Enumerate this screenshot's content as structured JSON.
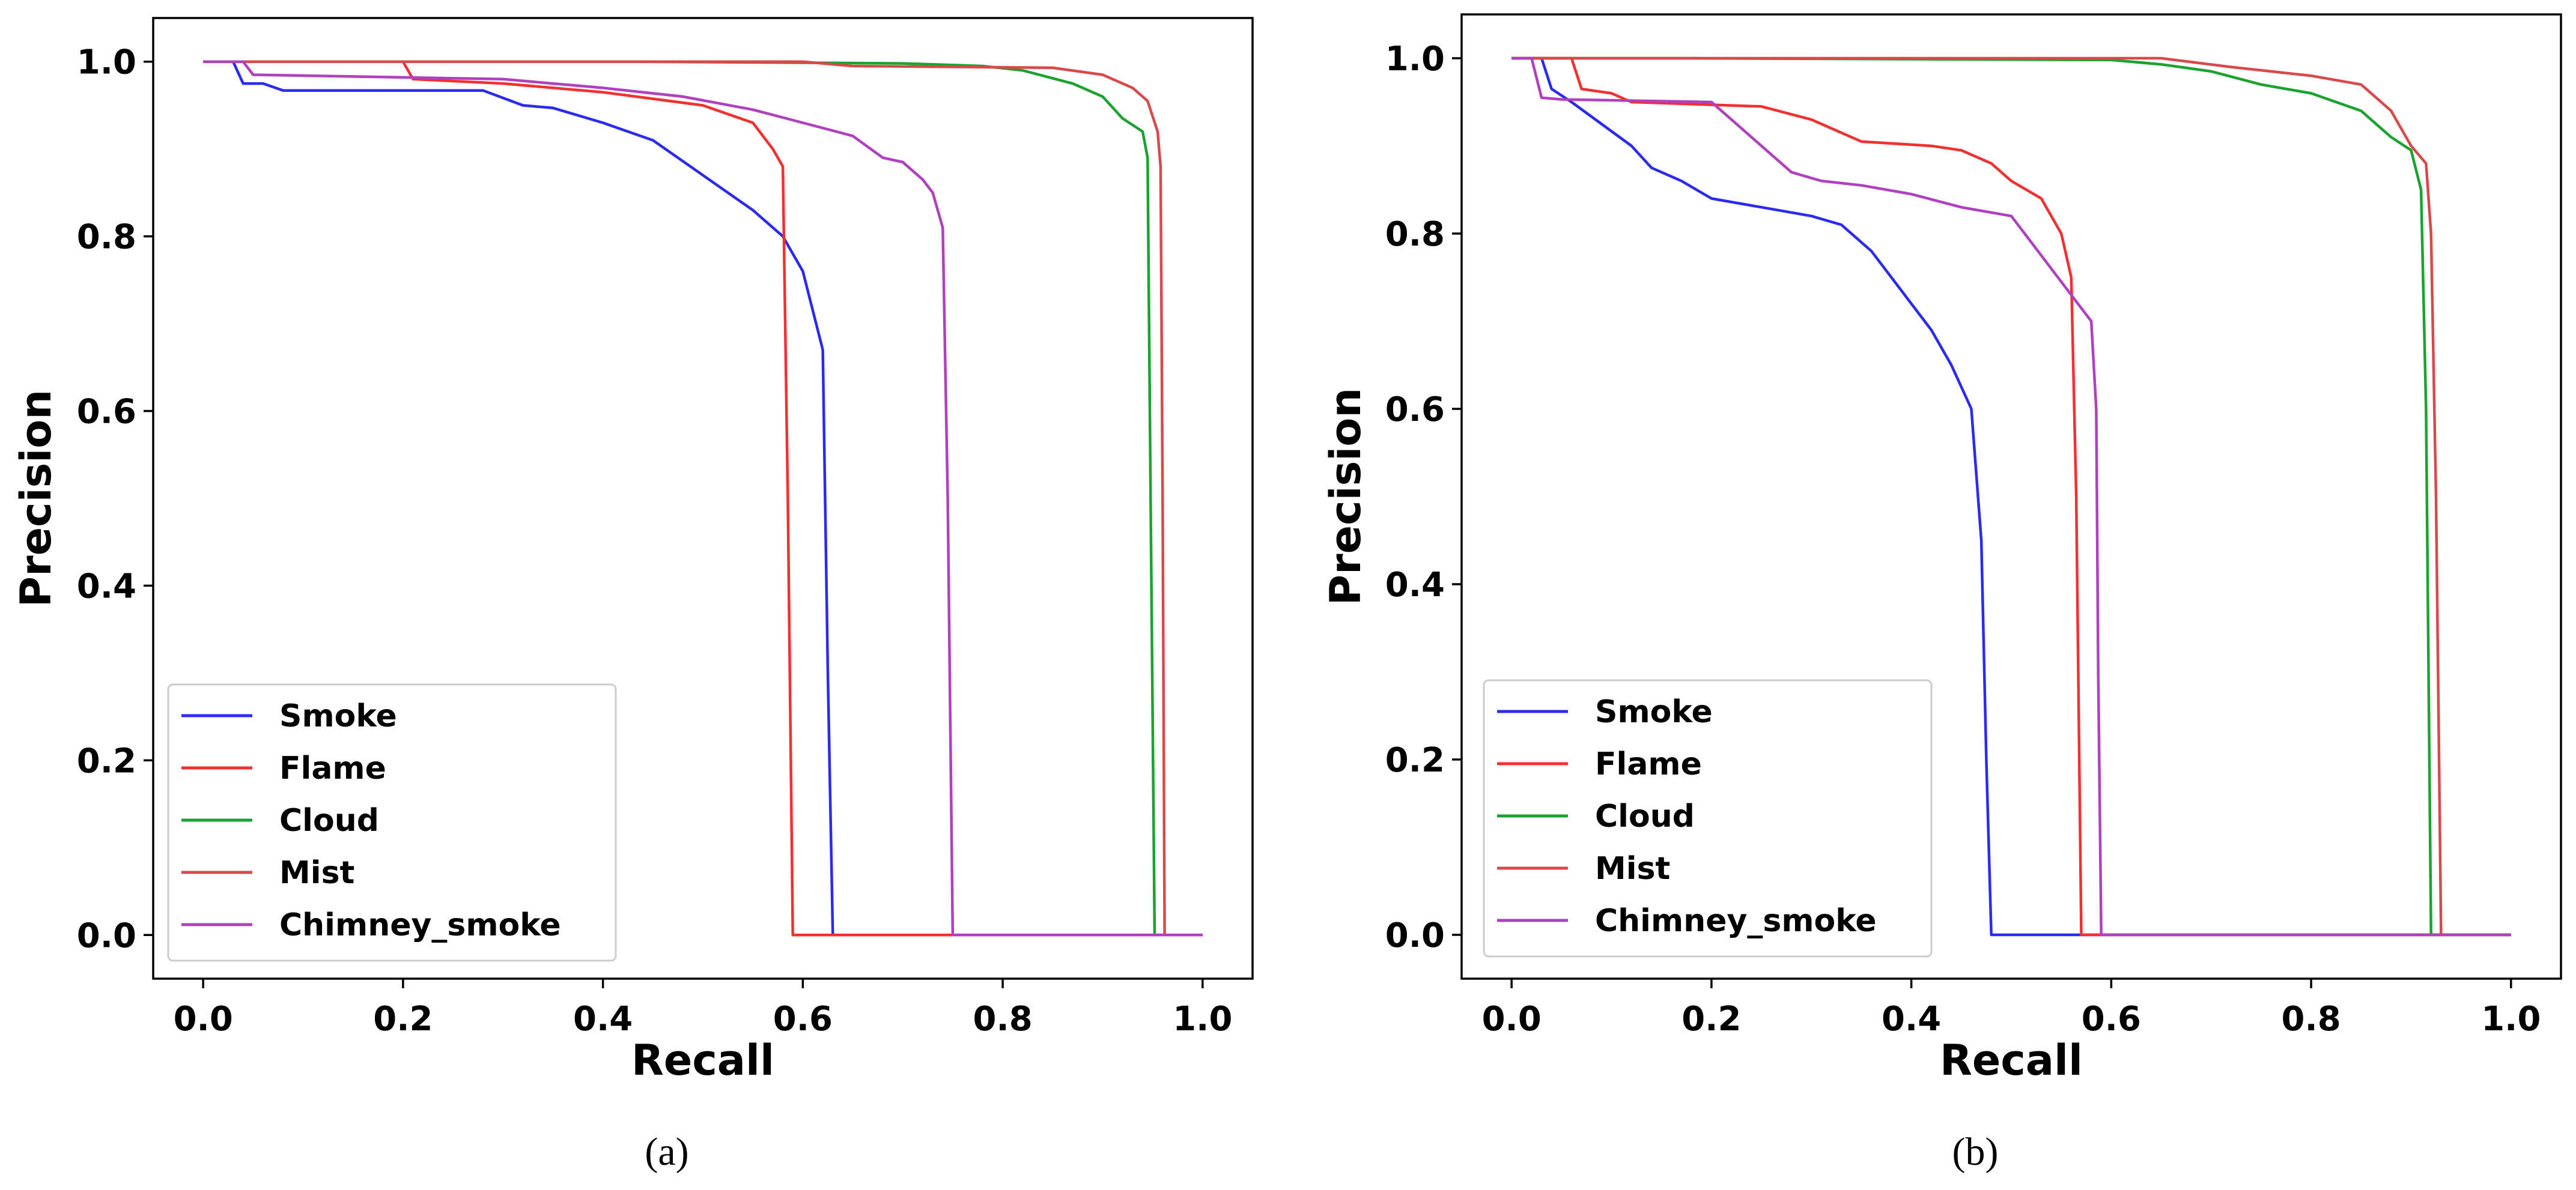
{
  "chart_data": [
    {
      "type": "line",
      "panel_label": "(a)",
      "xlabel": "Recall",
      "ylabel": "Precision",
      "xlim": [
        -0.05,
        1.05
      ],
      "ylim": [
        -0.05,
        1.05
      ],
      "xticks": [
        0.0,
        0.2,
        0.4,
        0.6,
        0.8,
        1.0
      ],
      "yticks": [
        0.0,
        0.2,
        0.4,
        0.6,
        0.8,
        1.0
      ],
      "xtick_labels": [
        "0.0",
        "0.2",
        "0.4",
        "0.6",
        "0.8",
        "1.0"
      ],
      "ytick_labels": [
        "0.0",
        "0.2",
        "0.4",
        "0.6",
        "0.8",
        "1.0"
      ],
      "legend_position": "lower-left",
      "series": [
        {
          "name": "Smoke",
          "color": "#2a2af2",
          "points": [
            [
              0,
              1.0
            ],
            [
              0.03,
              1.0
            ],
            [
              0.04,
              0.975
            ],
            [
              0.06,
              0.975
            ],
            [
              0.08,
              0.967
            ],
            [
              0.28,
              0.967
            ],
            [
              0.32,
              0.95
            ],
            [
              0.35,
              0.947
            ],
            [
              0.4,
              0.93
            ],
            [
              0.45,
              0.91
            ],
            [
              0.5,
              0.87
            ],
            [
              0.55,
              0.83
            ],
            [
              0.58,
              0.8
            ],
            [
              0.6,
              0.76
            ],
            [
              0.62,
              0.67
            ],
            [
              0.625,
              0.3
            ],
            [
              0.63,
              0.0
            ],
            [
              1.0,
              0.0
            ]
          ]
        },
        {
          "name": "Flame",
          "color": "#f23030",
          "points": [
            [
              0,
              1.0
            ],
            [
              0.2,
              1.0
            ],
            [
              0.21,
              0.98
            ],
            [
              0.3,
              0.975
            ],
            [
              0.4,
              0.965
            ],
            [
              0.5,
              0.95
            ],
            [
              0.55,
              0.93
            ],
            [
              0.57,
              0.9
            ],
            [
              0.58,
              0.88
            ],
            [
              0.585,
              0.5
            ],
            [
              0.59,
              0.0
            ],
            [
              1.0,
              0.0
            ]
          ]
        },
        {
          "name": "Cloud",
          "color": "#1aa32e",
          "points": [
            [
              0,
              1.0
            ],
            [
              0.44,
              1.0
            ],
            [
              0.7,
              0.998
            ],
            [
              0.78,
              0.995
            ],
            [
              0.82,
              0.99
            ],
            [
              0.87,
              0.975
            ],
            [
              0.9,
              0.96
            ],
            [
              0.92,
              0.935
            ],
            [
              0.94,
              0.92
            ],
            [
              0.945,
              0.89
            ],
            [
              0.948,
              0.5
            ],
            [
              0.952,
              0.0
            ],
            [
              1.0,
              0.0
            ]
          ]
        },
        {
          "name": "Mist",
          "color": "#d84a4a",
          "points": [
            [
              0,
              1.0
            ],
            [
              0.6,
              1.0
            ],
            [
              0.65,
              0.995
            ],
            [
              0.85,
              0.993
            ],
            [
              0.9,
              0.985
            ],
            [
              0.93,
              0.97
            ],
            [
              0.945,
              0.955
            ],
            [
              0.955,
              0.92
            ],
            [
              0.958,
              0.88
            ],
            [
              0.96,
              0.5
            ],
            [
              0.962,
              0.0
            ],
            [
              1.0,
              0.0
            ]
          ]
        },
        {
          "name": "Chimney_smoke",
          "color": "#b040c0",
          "points": [
            [
              0,
              1.0
            ],
            [
              0.04,
              1.0
            ],
            [
              0.05,
              0.985
            ],
            [
              0.3,
              0.98
            ],
            [
              0.4,
              0.97
            ],
            [
              0.48,
              0.96
            ],
            [
              0.55,
              0.945
            ],
            [
              0.6,
              0.93
            ],
            [
              0.65,
              0.915
            ],
            [
              0.68,
              0.89
            ],
            [
              0.7,
              0.885
            ],
            [
              0.72,
              0.865
            ],
            [
              0.73,
              0.85
            ],
            [
              0.74,
              0.81
            ],
            [
              0.745,
              0.5
            ],
            [
              0.75,
              0.0
            ],
            [
              1.0,
              0.0
            ]
          ]
        }
      ]
    },
    {
      "type": "line",
      "panel_label": "(b)",
      "xlabel": "Recall",
      "ylabel": "Precision",
      "xlim": [
        -0.05,
        1.05
      ],
      "ylim": [
        -0.05,
        1.05
      ],
      "xticks": [
        0.0,
        0.2,
        0.4,
        0.6,
        0.8,
        1.0
      ],
      "yticks": [
        0.0,
        0.2,
        0.4,
        0.6,
        0.8,
        1.0
      ],
      "xtick_labels": [
        "0.0",
        "0.2",
        "0.4",
        "0.6",
        "0.8",
        "1.0"
      ],
      "ytick_labels": [
        "0.0",
        "0.2",
        "0.4",
        "0.6",
        "0.8",
        "1.0"
      ],
      "legend_position": "lower-left",
      "series": [
        {
          "name": "Smoke",
          "color": "#2a2af2",
          "points": [
            [
              0,
              1.0
            ],
            [
              0.03,
              1.0
            ],
            [
              0.04,
              0.965
            ],
            [
              0.06,
              0.95
            ],
            [
              0.09,
              0.925
            ],
            [
              0.12,
              0.9
            ],
            [
              0.14,
              0.875
            ],
            [
              0.17,
              0.86
            ],
            [
              0.2,
              0.84
            ],
            [
              0.25,
              0.83
            ],
            [
              0.3,
              0.82
            ],
            [
              0.33,
              0.81
            ],
            [
              0.36,
              0.78
            ],
            [
              0.38,
              0.75
            ],
            [
              0.4,
              0.72
            ],
            [
              0.42,
              0.69
            ],
            [
              0.44,
              0.65
            ],
            [
              0.46,
              0.6
            ],
            [
              0.47,
              0.45
            ],
            [
              0.475,
              0.2
            ],
            [
              0.48,
              0.0
            ],
            [
              1.0,
              0.0
            ]
          ]
        },
        {
          "name": "Flame",
          "color": "#f23030",
          "points": [
            [
              0,
              1.0
            ],
            [
              0.06,
              1.0
            ],
            [
              0.07,
              0.965
            ],
            [
              0.1,
              0.96
            ],
            [
              0.12,
              0.95
            ],
            [
              0.25,
              0.945
            ],
            [
              0.3,
              0.93
            ],
            [
              0.35,
              0.905
            ],
            [
              0.42,
              0.9
            ],
            [
              0.45,
              0.895
            ],
            [
              0.48,
              0.88
            ],
            [
              0.5,
              0.86
            ],
            [
              0.53,
              0.84
            ],
            [
              0.55,
              0.8
            ],
            [
              0.56,
              0.75
            ],
            [
              0.565,
              0.5
            ],
            [
              0.57,
              0.0
            ],
            [
              1.0,
              0.0
            ]
          ]
        },
        {
          "name": "Cloud",
          "color": "#1aa32e",
          "points": [
            [
              0,
              1.0
            ],
            [
              0.17,
              1.0
            ],
            [
              0.6,
              0.998
            ],
            [
              0.65,
              0.993
            ],
            [
              0.7,
              0.985
            ],
            [
              0.75,
              0.97
            ],
            [
              0.8,
              0.96
            ],
            [
              0.85,
              0.94
            ],
            [
              0.88,
              0.91
            ],
            [
              0.9,
              0.895
            ],
            [
              0.91,
              0.85
            ],
            [
              0.915,
              0.6
            ],
            [
              0.92,
              0.0
            ],
            [
              1.0,
              0.0
            ]
          ]
        },
        {
          "name": "Mist",
          "color": "#d84a4a",
          "points": [
            [
              0,
              1.0
            ],
            [
              0.65,
              1.0
            ],
            [
              0.72,
              0.99
            ],
            [
              0.8,
              0.98
            ],
            [
              0.85,
              0.97
            ],
            [
              0.88,
              0.94
            ],
            [
              0.9,
              0.9
            ],
            [
              0.915,
              0.88
            ],
            [
              0.92,
              0.8
            ],
            [
              0.925,
              0.5
            ],
            [
              0.93,
              0.0
            ],
            [
              1.0,
              0.0
            ]
          ]
        },
        {
          "name": "Chimney_smoke",
          "color": "#b040c0",
          "points": [
            [
              0,
              1.0
            ],
            [
              0.02,
              1.0
            ],
            [
              0.03,
              0.955
            ],
            [
              0.05,
              0.953
            ],
            [
              0.2,
              0.95
            ],
            [
              0.22,
              0.93
            ],
            [
              0.25,
              0.9
            ],
            [
              0.28,
              0.87
            ],
            [
              0.31,
              0.86
            ],
            [
              0.35,
              0.855
            ],
            [
              0.4,
              0.845
            ],
            [
              0.45,
              0.83
            ],
            [
              0.5,
              0.82
            ],
            [
              0.52,
              0.79
            ],
            [
              0.54,
              0.76
            ],
            [
              0.56,
              0.73
            ],
            [
              0.58,
              0.7
            ],
            [
              0.585,
              0.6
            ],
            [
              0.587,
              0.3
            ],
            [
              0.59,
              0.0
            ],
            [
              1.0,
              0.0
            ]
          ]
        }
      ]
    }
  ]
}
